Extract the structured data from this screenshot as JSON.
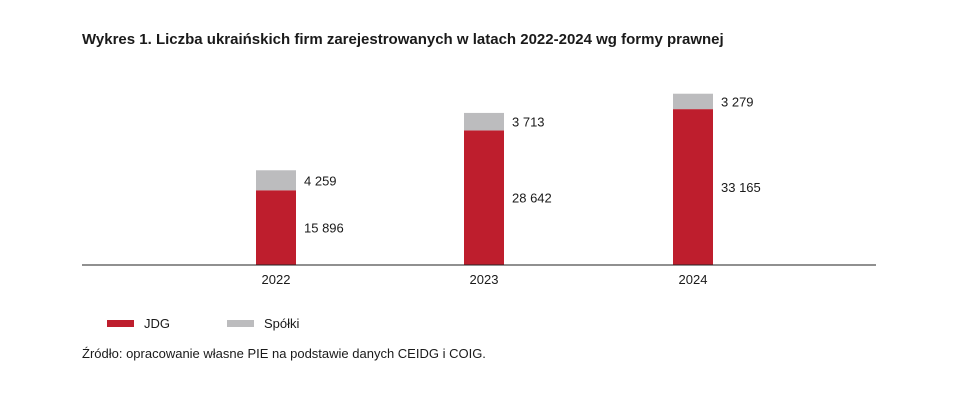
{
  "title": "Wykres 1.  Liczba ukraińskich firm zarejestrowanych w latach 2022-2024 wg formy prawnej",
  "source": "Źródło: opracowanie własne PIE na podstawie danych CEIDG i COIG.",
  "colors": {
    "JDG": "#be1e2d",
    "Spolki": "#bcbcbe",
    "axis": "#222222"
  },
  "chart_data": {
    "type": "bar",
    "stacked": true,
    "categories": [
      "2022",
      "2023",
      "2024"
    ],
    "series": [
      {
        "name": "JDG",
        "values": [
          15896,
          28642,
          33165
        ],
        "labels": [
          "15 896",
          "28 642",
          "33 165"
        ]
      },
      {
        "name": "Spółki",
        "values": [
          4259,
          3713,
          3279
        ],
        "labels": [
          "4 259",
          "3 713",
          "3 279"
        ]
      }
    ],
    "legend": {
      "placement": "bottom-left"
    },
    "grid": false
  }
}
